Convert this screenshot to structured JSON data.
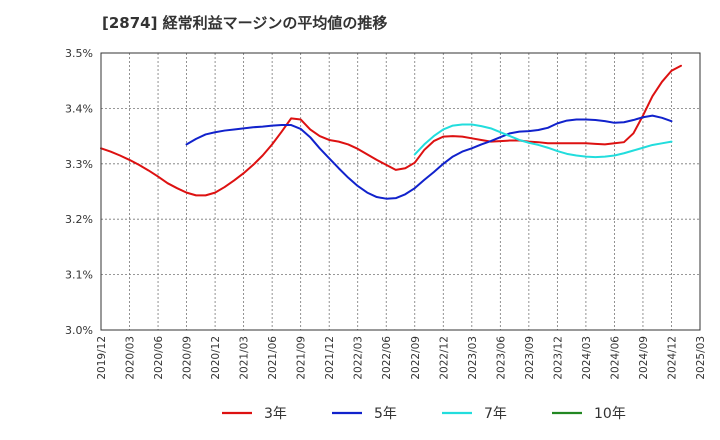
{
  "title": "[2874]  経常利益マージンの平均値の推移",
  "chart_data": {
    "type": "line",
    "title": "[2874]  経常利益マージンの平均値の推移",
    "xlabel": "",
    "ylabel": "",
    "ylim": [
      3.0,
      3.5
    ],
    "y_ticks": [
      "3.0%",
      "3.1%",
      "3.2%",
      "3.3%",
      "3.4%",
      "3.5%"
    ],
    "x_ticks": [
      "2019/12",
      "2020/03",
      "2020/06",
      "2020/09",
      "2020/12",
      "2021/03",
      "2021/06",
      "2021/09",
      "2021/12",
      "2022/03",
      "2022/06",
      "2022/09",
      "2022/12",
      "2023/03",
      "2023/06",
      "2023/09",
      "2023/12",
      "2024/03",
      "2024/06",
      "2024/09",
      "2024/12",
      "2025/03"
    ],
    "grid": true,
    "legend_position": "bottom",
    "series": [
      {
        "name": "3年",
        "color": "#dd1111",
        "points": [
          [
            "2019/12",
            3.328
          ],
          [
            "2020/01",
            3.322
          ],
          [
            "2020/02",
            3.315
          ],
          [
            "2020/03",
            3.307
          ],
          [
            "2020/04",
            3.298
          ],
          [
            "2020/05",
            3.288
          ],
          [
            "2020/06",
            3.277
          ],
          [
            "2020/07",
            3.265
          ],
          [
            "2020/08",
            3.256
          ],
          [
            "2020/09",
            3.248
          ],
          [
            "2020/10",
            3.243
          ],
          [
            "2020/11",
            3.243
          ],
          [
            "2020/12",
            3.248
          ],
          [
            "2021/01",
            3.258
          ],
          [
            "2021/02",
            3.27
          ],
          [
            "2021/03",
            3.283
          ],
          [
            "2021/04",
            3.298
          ],
          [
            "2021/05",
            3.315
          ],
          [
            "2021/06",
            3.335
          ],
          [
            "2021/07",
            3.358
          ],
          [
            "2021/08",
            3.382
          ],
          [
            "2021/09",
            3.38
          ],
          [
            "2021/10",
            3.362
          ],
          [
            "2021/11",
            3.35
          ],
          [
            "2021/12",
            3.343
          ],
          [
            "2022/01",
            3.34
          ],
          [
            "2022/02",
            3.335
          ],
          [
            "2022/03",
            3.327
          ],
          [
            "2022/04",
            3.317
          ],
          [
            "2022/05",
            3.307
          ],
          [
            "2022/06",
            3.298
          ],
          [
            "2022/07",
            3.289
          ],
          [
            "2022/08",
            3.292
          ],
          [
            "2022/09",
            3.302
          ],
          [
            "2022/10",
            3.325
          ],
          [
            "2022/11",
            3.341
          ],
          [
            "2022/12",
            3.349
          ],
          [
            "2023/01",
            3.35
          ],
          [
            "2023/02",
            3.349
          ],
          [
            "2023/03",
            3.346
          ],
          [
            "2023/04",
            3.343
          ],
          [
            "2023/05",
            3.34
          ],
          [
            "2023/06",
            3.341
          ],
          [
            "2023/07",
            3.342
          ],
          [
            "2023/08",
            3.342
          ],
          [
            "2023/09",
            3.34
          ],
          [
            "2023/10",
            3.339
          ],
          [
            "2023/11",
            3.337
          ],
          [
            "2023/12",
            3.337
          ],
          [
            "2024/01",
            3.337
          ],
          [
            "2024/02",
            3.337
          ],
          [
            "2024/03",
            3.337
          ],
          [
            "2024/04",
            3.336
          ],
          [
            "2024/05",
            3.335
          ],
          [
            "2024/06",
            3.337
          ],
          [
            "2024/07",
            3.339
          ],
          [
            "2024/08",
            3.355
          ],
          [
            "2024/09",
            3.387
          ],
          [
            "2024/10",
            3.422
          ],
          [
            "2024/11",
            3.448
          ],
          [
            "2024/12",
            3.468
          ],
          [
            "2025/01",
            3.477
          ]
        ]
      },
      {
        "name": "5年",
        "color": "#1122cc",
        "points": [
          [
            "2020/09",
            3.335
          ],
          [
            "2020/10",
            3.345
          ],
          [
            "2020/11",
            3.353
          ],
          [
            "2020/12",
            3.357
          ],
          [
            "2021/01",
            3.36
          ],
          [
            "2021/02",
            3.362
          ],
          [
            "2021/03",
            3.364
          ],
          [
            "2021/04",
            3.366
          ],
          [
            "2021/05",
            3.367
          ],
          [
            "2021/06",
            3.369
          ],
          [
            "2021/07",
            3.37
          ],
          [
            "2021/08",
            3.37
          ],
          [
            "2021/09",
            3.363
          ],
          [
            "2021/10",
            3.348
          ],
          [
            "2021/11",
            3.328
          ],
          [
            "2021/12",
            3.31
          ],
          [
            "2022/01",
            3.292
          ],
          [
            "2022/02",
            3.275
          ],
          [
            "2022/03",
            3.26
          ],
          [
            "2022/04",
            3.248
          ],
          [
            "2022/05",
            3.24
          ],
          [
            "2022/06",
            3.237
          ],
          [
            "2022/07",
            3.238
          ],
          [
            "2022/08",
            3.245
          ],
          [
            "2022/09",
            3.256
          ],
          [
            "2022/10",
            3.271
          ],
          [
            "2022/11",
            3.285
          ],
          [
            "2022/12",
            3.3
          ],
          [
            "2023/01",
            3.313
          ],
          [
            "2023/02",
            3.322
          ],
          [
            "2023/03",
            3.328
          ],
          [
            "2023/04",
            3.335
          ],
          [
            "2023/05",
            3.341
          ],
          [
            "2023/06",
            3.348
          ],
          [
            "2023/07",
            3.355
          ],
          [
            "2023/08",
            3.358
          ],
          [
            "2023/09",
            3.359
          ],
          [
            "2023/10",
            3.361
          ],
          [
            "2023/11",
            3.365
          ],
          [
            "2023/12",
            3.373
          ],
          [
            "2024/01",
            3.378
          ],
          [
            "2024/02",
            3.38
          ],
          [
            "2024/03",
            3.38
          ],
          [
            "2024/04",
            3.379
          ],
          [
            "2024/05",
            3.377
          ],
          [
            "2024/06",
            3.374
          ],
          [
            "2024/07",
            3.375
          ],
          [
            "2024/08",
            3.379
          ],
          [
            "2024/09",
            3.384
          ],
          [
            "2024/10",
            3.387
          ],
          [
            "2024/11",
            3.383
          ],
          [
            "2024/12",
            3.377
          ]
        ]
      },
      {
        "name": "7年",
        "color": "#22dddd",
        "points": [
          [
            "2022/09",
            3.317
          ],
          [
            "2022/10",
            3.335
          ],
          [
            "2022/11",
            3.35
          ],
          [
            "2022/12",
            3.362
          ],
          [
            "2023/01",
            3.369
          ],
          [
            "2023/02",
            3.371
          ],
          [
            "2023/03",
            3.371
          ],
          [
            "2023/04",
            3.368
          ],
          [
            "2023/05",
            3.364
          ],
          [
            "2023/06",
            3.357
          ],
          [
            "2023/07",
            3.35
          ],
          [
            "2023/08",
            3.343
          ],
          [
            "2023/09",
            3.338
          ],
          [
            "2023/10",
            3.334
          ],
          [
            "2023/11",
            3.329
          ],
          [
            "2023/12",
            3.323
          ],
          [
            "2024/01",
            3.318
          ],
          [
            "2024/02",
            3.315
          ],
          [
            "2024/03",
            3.313
          ],
          [
            "2024/04",
            3.312
          ],
          [
            "2024/05",
            3.313
          ],
          [
            "2024/06",
            3.315
          ],
          [
            "2024/07",
            3.319
          ],
          [
            "2024/08",
            3.324
          ],
          [
            "2024/09",
            3.329
          ],
          [
            "2024/10",
            3.334
          ],
          [
            "2024/11",
            3.337
          ],
          [
            "2024/12",
            3.34
          ]
        ]
      },
      {
        "name": "10年",
        "color": "#228822",
        "points": []
      }
    ]
  }
}
